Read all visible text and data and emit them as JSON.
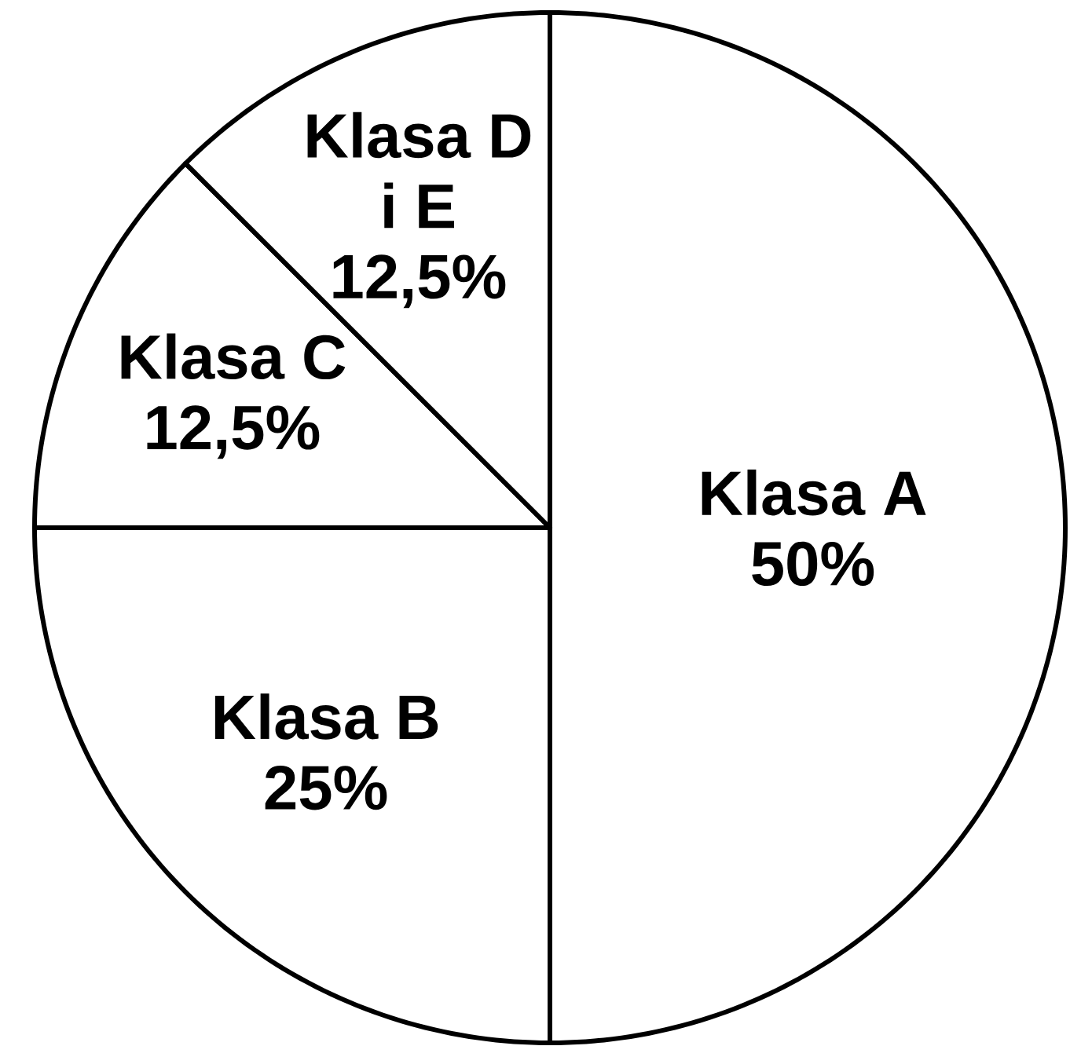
{
  "chart_data": {
    "type": "pie",
    "categories": [
      "Klasa A",
      "Klasa B",
      "Klasa C",
      "Klasa D i E"
    ],
    "values": [
      50,
      25,
      12.5,
      12.5
    ],
    "value_labels": [
      "50%",
      "25%",
      "12,5%",
      "12,5%"
    ],
    "colors": [
      "#ffffff",
      "#ffffff",
      "#ffffff",
      "#ffffff"
    ]
  }
}
